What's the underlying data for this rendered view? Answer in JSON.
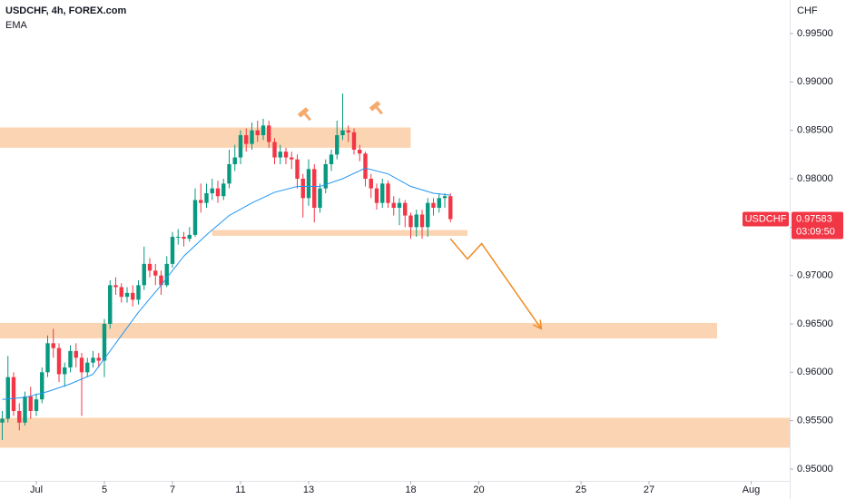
{
  "chart_data": {
    "type": "candlestick",
    "title": "USDCHF, 4h, FOREX.com",
    "indicator_label": "EMA",
    "y_axis_label": "CHF",
    "x": [
      -6,
      -5,
      -4,
      -3,
      -2,
      -1,
      0,
      1,
      2,
      3,
      4,
      5,
      6,
      7,
      8,
      9,
      10,
      11,
      12,
      13,
      14,
      15,
      16,
      17,
      18,
      19,
      20,
      21,
      22,
      23,
      24,
      25,
      26,
      27,
      28,
      29,
      30,
      31,
      32,
      33,
      34,
      35,
      36,
      37,
      38,
      39,
      40,
      41,
      42,
      43,
      44,
      45,
      46,
      47,
      48,
      49,
      50,
      51,
      52,
      53,
      54,
      55,
      56,
      57,
      58,
      59,
      60,
      61,
      62,
      63,
      64,
      65,
      66,
      67,
      68,
      69,
      70,
      71,
      72,
      73
    ],
    "open": [
      0.9548,
      0.9552,
      0.9595,
      0.956,
      0.9548,
      0.9575,
      0.956,
      0.9572,
      0.96,
      0.963,
      0.9625,
      0.9598,
      0.9605,
      0.9622,
      0.9615,
      0.96,
      0.961,
      0.9615,
      0.9612,
      0.965,
      0.969,
      0.9688,
      0.9678,
      0.9682,
      0.9675,
      0.969,
      0.9712,
      0.9705,
      0.97,
      0.969,
      0.9712,
      0.974,
      0.974,
      0.9738,
      0.9742,
      0.9778,
      0.9775,
      0.9785,
      0.979,
      0.9782,
      0.9795,
      0.9815,
      0.9822,
      0.9845,
      0.9836,
      0.985,
      0.9845,
      0.9855,
      0.9838,
      0.9822,
      0.9828,
      0.9822,
      0.982,
      0.98,
      0.978,
      0.981,
      0.977,
      0.979,
      0.9815,
      0.9825,
      0.9845,
      0.985,
      0.9848,
      0.983,
      0.9826,
      0.98,
      0.979,
      0.9775,
      0.9795,
      0.9775,
      0.977,
      0.9775,
      0.9762,
      0.975,
      0.9763,
      0.975,
      0.9775,
      0.977,
      0.978,
      0.9782
    ],
    "high": [
      0.956,
      0.9617,
      0.96,
      0.9568,
      0.958,
      0.9585,
      0.9578,
      0.9605,
      0.9638,
      0.9645,
      0.963,
      0.961,
      0.9628,
      0.963,
      0.962,
      0.9615,
      0.9622,
      0.962,
      0.9655,
      0.9695,
      0.9698,
      0.9692,
      0.9688,
      0.969,
      0.9695,
      0.973,
      0.9718,
      0.9712,
      0.9705,
      0.972,
      0.9745,
      0.9748,
      0.9745,
      0.975,
      0.979,
      0.9795,
      0.9795,
      0.98,
      0.9798,
      0.98,
      0.983,
      0.9835,
      0.985,
      0.9852,
      0.9858,
      0.986,
      0.9862,
      0.986,
      0.9842,
      0.9835,
      0.9832,
      0.9828,
      0.9825,
      0.9805,
      0.982,
      0.9815,
      0.9795,
      0.982,
      0.983,
      0.986,
      0.9888,
      0.9855,
      0.9852,
      0.9835,
      0.9828,
      0.9805,
      0.9795,
      0.98,
      0.9798,
      0.9782,
      0.978,
      0.9778,
      0.9765,
      0.9768,
      0.9768,
      0.978,
      0.978,
      0.9785,
      0.9785,
      0.9785
    ],
    "low": [
      0.953,
      0.9548,
      0.9555,
      0.954,
      0.9545,
      0.9552,
      0.9555,
      0.9568,
      0.9595,
      0.9615,
      0.959,
      0.9585,
      0.96,
      0.9605,
      0.9555,
      0.9595,
      0.9605,
      0.9605,
      0.9595,
      0.9645,
      0.968,
      0.9672,
      0.9672,
      0.9668,
      0.967,
      0.9685,
      0.9698,
      0.969,
      0.968,
      0.9688,
      0.9708,
      0.9732,
      0.973,
      0.9735,
      0.974,
      0.9765,
      0.977,
      0.9778,
      0.9775,
      0.9778,
      0.979,
      0.9808,
      0.9815,
      0.9828,
      0.983,
      0.9838,
      0.984,
      0.9832,
      0.9815,
      0.9815,
      0.9815,
      0.981,
      0.979,
      0.976,
      0.9772,
      0.9755,
      0.9765,
      0.9785,
      0.9808,
      0.982,
      0.984,
      0.9838,
      0.9825,
      0.9818,
      0.9792,
      0.978,
      0.9768,
      0.977,
      0.977,
      0.9762,
      0.9752,
      0.975,
      0.9738,
      0.974,
      0.9738,
      0.974,
      0.9762,
      0.9765,
      0.977,
      0.9755
    ],
    "close": [
      0.9552,
      0.9595,
      0.956,
      0.9548,
      0.9575,
      0.956,
      0.9572,
      0.96,
      0.963,
      0.9625,
      0.9598,
      0.9605,
      0.9622,
      0.9615,
      0.96,
      0.961,
      0.9615,
      0.9612,
      0.965,
      0.969,
      0.9688,
      0.9678,
      0.9682,
      0.9675,
      0.969,
      0.9712,
      0.9705,
      0.97,
      0.969,
      0.9712,
      0.974,
      0.974,
      0.9738,
      0.9742,
      0.9778,
      0.9775,
      0.9785,
      0.979,
      0.9782,
      0.9795,
      0.9815,
      0.9822,
      0.9845,
      0.9836,
      0.985,
      0.9845,
      0.9855,
      0.9838,
      0.9822,
      0.9828,
      0.9822,
      0.982,
      0.98,
      0.978,
      0.981,
      0.977,
      0.979,
      0.9815,
      0.9825,
      0.9845,
      0.985,
      0.9848,
      0.983,
      0.9826,
      0.98,
      0.979,
      0.9775,
      0.9795,
      0.9775,
      0.977,
      0.9775,
      0.9762,
      0.975,
      0.9763,
      0.975,
      0.9775,
      0.977,
      0.978,
      0.9782,
      0.97583
    ],
    "up_color": "#089981",
    "down_color": "#f23645",
    "ema": {
      "color": "#2196f3",
      "x": [
        -6,
        -2,
        2,
        6,
        10,
        14,
        18,
        22,
        26,
        30,
        34,
        38,
        42,
        46,
        50,
        54,
        58,
        62,
        66,
        70,
        73
      ],
      "values": [
        0.9572,
        0.9574,
        0.958,
        0.9588,
        0.9598,
        0.963,
        0.9662,
        0.969,
        0.972,
        0.9742,
        0.9762,
        0.9775,
        0.9786,
        0.9792,
        0.9792,
        0.98,
        0.9811,
        0.9805,
        0.9792,
        0.9785,
        0.9783
      ]
    },
    "zones": [
      {
        "x": [
          -7,
          66
        ],
        "y": [
          0.9832,
          0.9853
        ]
      },
      {
        "x": [
          31,
          76
        ],
        "y": [
          0.9741,
          0.9747
        ]
      },
      {
        "x": [
          -7,
          120
        ],
        "y": [
          0.9635,
          0.9651
        ]
      },
      {
        "x": [
          -7,
          133
        ],
        "y": [
          0.9522,
          0.9553
        ]
      }
    ],
    "zone_color": "#fbd5b3",
    "arrow": {
      "color": "#f08a24",
      "x": [
        73,
        76,
        78.5,
        89
      ],
      "y": [
        0.9738,
        0.9717,
        0.9733,
        0.9645
      ]
    },
    "last_price": {
      "symbol": "USDCHF",
      "value": 0.97583,
      "label": "0.97583",
      "countdown": "03:09:50",
      "color": "#f23645"
    },
    "xlim": [
      -6.4,
      132.8
    ],
    "ylim": [
      0.94878,
      0.99847
    ],
    "xticks": [
      {
        "value": 0,
        "label": "Jul"
      },
      {
        "value": 12,
        "label": "5"
      },
      {
        "value": 24,
        "label": "7"
      },
      {
        "value": 36,
        "label": "11"
      },
      {
        "value": 48,
        "label": "13"
      },
      {
        "value": 66,
        "label": "18"
      },
      {
        "value": 78,
        "label": "20"
      },
      {
        "value": 96,
        "label": "25"
      },
      {
        "value": 108,
        "label": "27"
      },
      {
        "value": 126,
        "label": "Aug"
      }
    ],
    "yticks": [
      {
        "value": 0.95,
        "label": "0.95000"
      },
      {
        "value": 0.955,
        "label": "0.95500"
      },
      {
        "value": 0.96,
        "label": "0.96000"
      },
      {
        "value": 0.965,
        "label": "0.96500"
      },
      {
        "value": 0.97,
        "label": "0.97000"
      },
      {
        "value": 0.975,
        "label": "0.97500"
      },
      {
        "value": 0.98,
        "label": "0.98000"
      },
      {
        "value": 0.985,
        "label": "0.98500"
      },
      {
        "value": 0.99,
        "label": "0.99000"
      },
      {
        "value": 0.995,
        "label": "0.99500"
      }
    ]
  }
}
